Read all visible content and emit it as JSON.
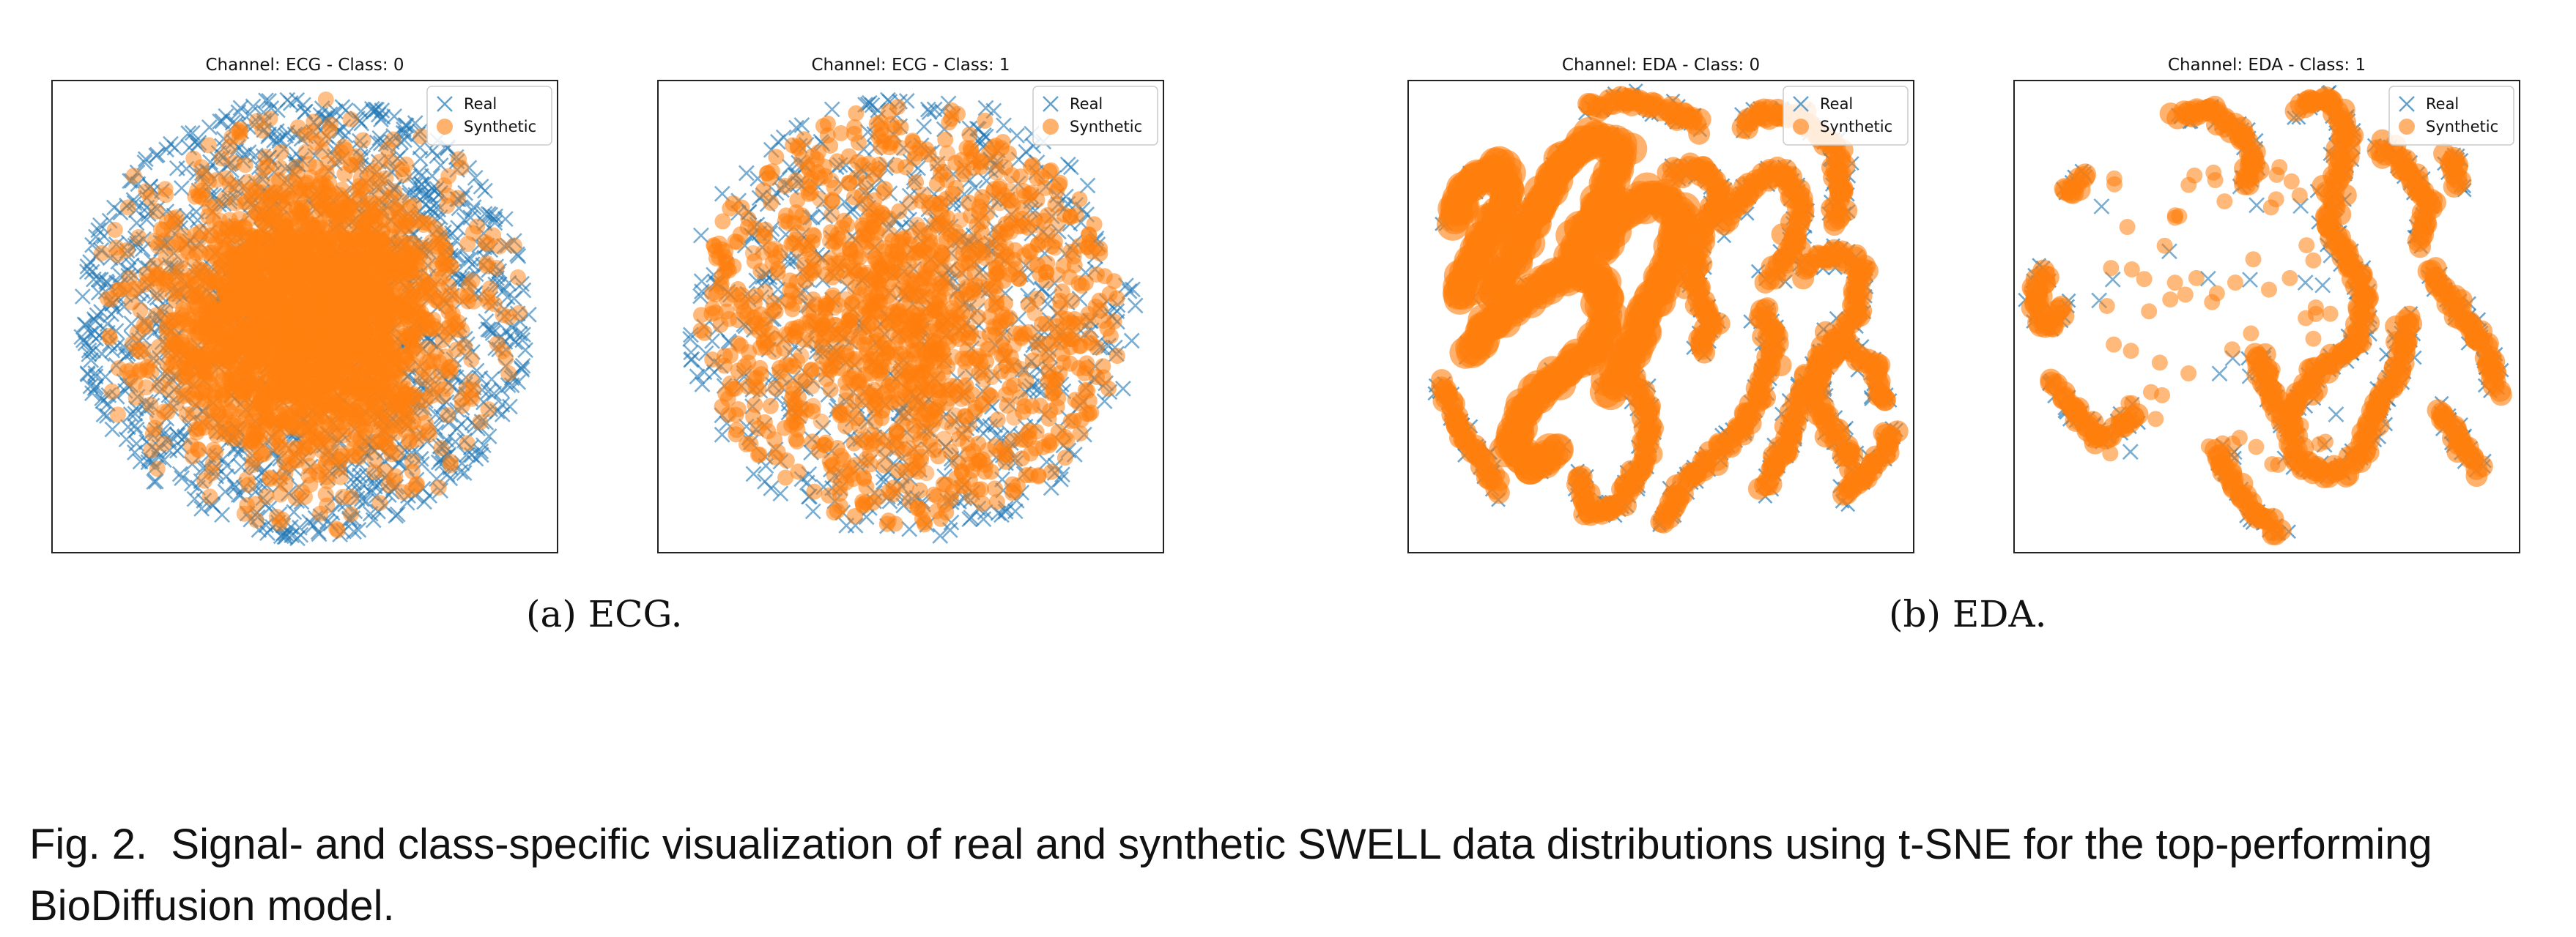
{
  "chart_data": [
    {
      "type": "scatter",
      "title": "Channel: ECG - Class: 0",
      "xlabel": "",
      "ylabel": "",
      "axes_ticks": "none",
      "legend": {
        "placement": "top-right",
        "entries": [
          "Real",
          "Synthetic"
        ]
      },
      "series": [
        {
          "name": "Real",
          "marker": "x",
          "color": "#1f77b4",
          "alpha": 0.6,
          "pattern": "diffuse disk",
          "approx_points": 1400
        },
        {
          "name": "Synthetic",
          "marker": "circle",
          "color": "#ff7f0e",
          "alpha": 0.55,
          "pattern": "dense filled disk",
          "approx_points": 2600
        }
      ]
    },
    {
      "type": "scatter",
      "title": "Channel: ECG - Class: 1",
      "xlabel": "",
      "ylabel": "",
      "axes_ticks": "none",
      "legend": {
        "placement": "top-right",
        "entries": [
          "Real",
          "Synthetic"
        ]
      },
      "series": [
        {
          "name": "Real",
          "marker": "x",
          "color": "#1f77b4",
          "alpha": 0.6,
          "pattern": "diffuse disk",
          "approx_points": 700
        },
        {
          "name": "Synthetic",
          "marker": "circle",
          "color": "#ff7f0e",
          "alpha": 0.55,
          "pattern": "diffuse disk",
          "approx_points": 900
        }
      ]
    },
    {
      "type": "scatter",
      "title": "Channel: EDA - Class: 0",
      "xlabel": "",
      "ylabel": "",
      "axes_ticks": "none",
      "legend": {
        "placement": "top-right",
        "entries": [
          "Real",
          "Synthetic"
        ]
      },
      "series": [
        {
          "name": "Real",
          "marker": "x",
          "color": "#1f77b4",
          "alpha": 0.6,
          "pattern": "worm-like curves"
        },
        {
          "name": "Synthetic",
          "marker": "circle",
          "color": "#ff7f0e",
          "alpha": 0.55,
          "pattern": "worm-like curves"
        }
      ]
    },
    {
      "type": "scatter",
      "title": "Channel: EDA - Class: 1",
      "xlabel": "",
      "ylabel": "",
      "axes_ticks": "none",
      "legend": {
        "placement": "top-right",
        "entries": [
          "Real",
          "Synthetic"
        ]
      },
      "series": [
        {
          "name": "Real",
          "marker": "x",
          "color": "#1f77b4",
          "alpha": 0.6,
          "pattern": "curves and scattered points"
        },
        {
          "name": "Synthetic",
          "marker": "circle",
          "color": "#ff7f0e",
          "alpha": 0.55,
          "pattern": "curves and scattered points"
        }
      ]
    }
  ],
  "subcaptions": {
    "a": "(a)  ECG.",
    "b": "(b)  EDA."
  },
  "caption": {
    "label": "Fig. 2.",
    "text": "Signal- and class-specific visualization of real and synthetic SWELL data distributions using t-SNE for the top-performing BioDiffusion model."
  }
}
